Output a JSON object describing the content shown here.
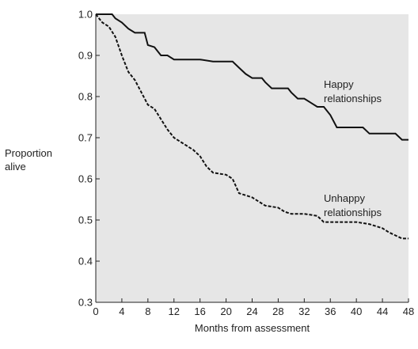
{
  "chart_data": {
    "type": "line",
    "title": "",
    "xlabel": "Months from assessment",
    "ylabel_lines": [
      "Proportion",
      "alive"
    ],
    "xlim": [
      0,
      48
    ],
    "ylim": [
      0.3,
      1.0
    ],
    "x_ticks": [
      0,
      4,
      8,
      12,
      16,
      20,
      24,
      28,
      32,
      36,
      40,
      44,
      48
    ],
    "y_ticks": [
      0.3,
      0.4,
      0.5,
      0.6,
      0.7,
      0.8,
      0.9,
      1.0
    ],
    "y_tick_labels": [
      "0.3",
      "0.4",
      "0.5",
      "0.6",
      "0.7",
      "0.8",
      "0.9",
      "1.0"
    ],
    "background": "#e6e6e6",
    "grid": false,
    "series": [
      {
        "label_lines": [
          "Happy",
          "relationships"
        ],
        "style": "solid",
        "color": "#111111",
        "points": [
          [
            0,
            1.0
          ],
          [
            2.5,
            1.0
          ],
          [
            3,
            0.99
          ],
          [
            4,
            0.98
          ],
          [
            5,
            0.965
          ],
          [
            6,
            0.955
          ],
          [
            7.5,
            0.955
          ],
          [
            8,
            0.925
          ],
          [
            9,
            0.92
          ],
          [
            10,
            0.9
          ],
          [
            11,
            0.9
          ],
          [
            12,
            0.89
          ],
          [
            16,
            0.89
          ],
          [
            18,
            0.885
          ],
          [
            21,
            0.885
          ],
          [
            22,
            0.87
          ],
          [
            23,
            0.855
          ],
          [
            24,
            0.845
          ],
          [
            25.5,
            0.845
          ],
          [
            26,
            0.835
          ],
          [
            27,
            0.82
          ],
          [
            29.5,
            0.82
          ],
          [
            30,
            0.81
          ],
          [
            31,
            0.795
          ],
          [
            32,
            0.795
          ],
          [
            33,
            0.785
          ],
          [
            34,
            0.775
          ],
          [
            35,
            0.775
          ],
          [
            36,
            0.755
          ],
          [
            37,
            0.725
          ],
          [
            41,
            0.725
          ],
          [
            42,
            0.71
          ],
          [
            44,
            0.71
          ],
          [
            46,
            0.71
          ],
          [
            47,
            0.695
          ],
          [
            48,
            0.695
          ]
        ]
      },
      {
        "label_lines": [
          "Unhappy",
          "relationships"
        ],
        "style": "dashed",
        "color": "#111111",
        "points": [
          [
            0,
            1.0
          ],
          [
            1,
            0.98
          ],
          [
            2,
            0.97
          ],
          [
            3,
            0.945
          ],
          [
            4,
            0.9
          ],
          [
            5,
            0.86
          ],
          [
            6,
            0.84
          ],
          [
            7,
            0.81
          ],
          [
            8,
            0.78
          ],
          [
            9,
            0.77
          ],
          [
            10,
            0.745
          ],
          [
            11,
            0.72
          ],
          [
            12,
            0.7
          ],
          [
            13,
            0.69
          ],
          [
            14,
            0.68
          ],
          [
            15,
            0.67
          ],
          [
            16,
            0.655
          ],
          [
            17,
            0.63
          ],
          [
            18,
            0.615
          ],
          [
            20,
            0.61
          ],
          [
            21,
            0.6
          ],
          [
            22,
            0.565
          ],
          [
            23,
            0.56
          ],
          [
            24,
            0.555
          ],
          [
            25,
            0.545
          ],
          [
            26,
            0.535
          ],
          [
            28,
            0.53
          ],
          [
            29,
            0.52
          ],
          [
            30,
            0.515
          ],
          [
            32,
            0.515
          ],
          [
            34,
            0.51
          ],
          [
            35,
            0.495
          ],
          [
            40,
            0.495
          ],
          [
            42,
            0.49
          ],
          [
            44,
            0.48
          ],
          [
            45,
            0.47
          ],
          [
            47,
            0.455
          ],
          [
            48,
            0.455
          ]
        ]
      }
    ]
  }
}
